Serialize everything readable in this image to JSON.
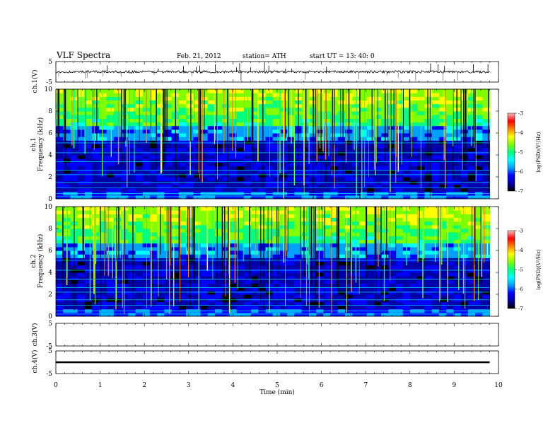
{
  "header": {
    "title": "VLF  Spectra",
    "date": "Feb. 21, 2012",
    "station": "station= ATH",
    "start_ut": "start  UT  =   13: 40: 0"
  },
  "colors": {
    "colormap": [
      "#000000",
      "#0000aa",
      "#0000ff",
      "#00a0ff",
      "#00ffff",
      "#00ff80",
      "#80ff00",
      "#ffff00",
      "#ff8000",
      "#ff0000",
      "#ffc0c0"
    ]
  },
  "chart_data": [
    {
      "id": "ch1_waveform",
      "type": "line",
      "ylabel": "ch.1(V)",
      "ylim": [
        -5,
        5
      ],
      "yticks": [
        "5",
        "-5"
      ],
      "xlim": [
        0,
        10
      ],
      "description_values": {
        "baseline": 0,
        "noise_peak": 1.5
      }
    },
    {
      "id": "ch1_spectrogram",
      "type": "heatmap",
      "ylabel_top": "ch.1",
      "ylabel": "Frequency (kHz)",
      "ylim": [
        0,
        10
      ],
      "yticks": [
        "0",
        "2",
        "4",
        "6",
        "8",
        "10"
      ],
      "xlim": [
        0,
        10
      ],
      "colorbar": {
        "label": "log(PSD)(V²/Hz)",
        "ticks": [
          "-3",
          "-4",
          "-5",
          "-6",
          "-7"
        ],
        "range": [
          -7,
          -3
        ]
      }
    },
    {
      "id": "ch2_spectrogram",
      "type": "heatmap",
      "ylabel_top": "ch.2",
      "ylabel": "Frequency (kHz)",
      "ylim": [
        0,
        10
      ],
      "yticks": [
        "0",
        "2",
        "4",
        "6",
        "8",
        "10"
      ],
      "xlim": [
        0,
        10
      ],
      "colorbar": {
        "label": "log(PSD)(V²/Hz)",
        "ticks": [
          "-3",
          "-4",
          "-5",
          "-6",
          "-7"
        ],
        "range": [
          -7,
          -3
        ]
      }
    },
    {
      "id": "ch3_waveform",
      "type": "line",
      "ylabel": "ch.3(V)",
      "ylim": [
        -5,
        5
      ],
      "yticks": [
        "5",
        "-5"
      ],
      "xlim": [
        0,
        10
      ]
    },
    {
      "id": "ch4_waveform",
      "type": "line",
      "ylabel": "ch.4(V)",
      "ylim": [
        -5,
        5
      ],
      "yticks": [
        "5",
        "-5"
      ],
      "xlim": [
        0,
        10
      ],
      "description_values": {
        "baseline": 0
      }
    }
  ],
  "xaxis": {
    "label": "Time  (min)",
    "ticks": [
      "0",
      "1",
      "2",
      "3",
      "4",
      "5",
      "6",
      "7",
      "8",
      "9",
      "10"
    ],
    "data_end": 9.8
  }
}
